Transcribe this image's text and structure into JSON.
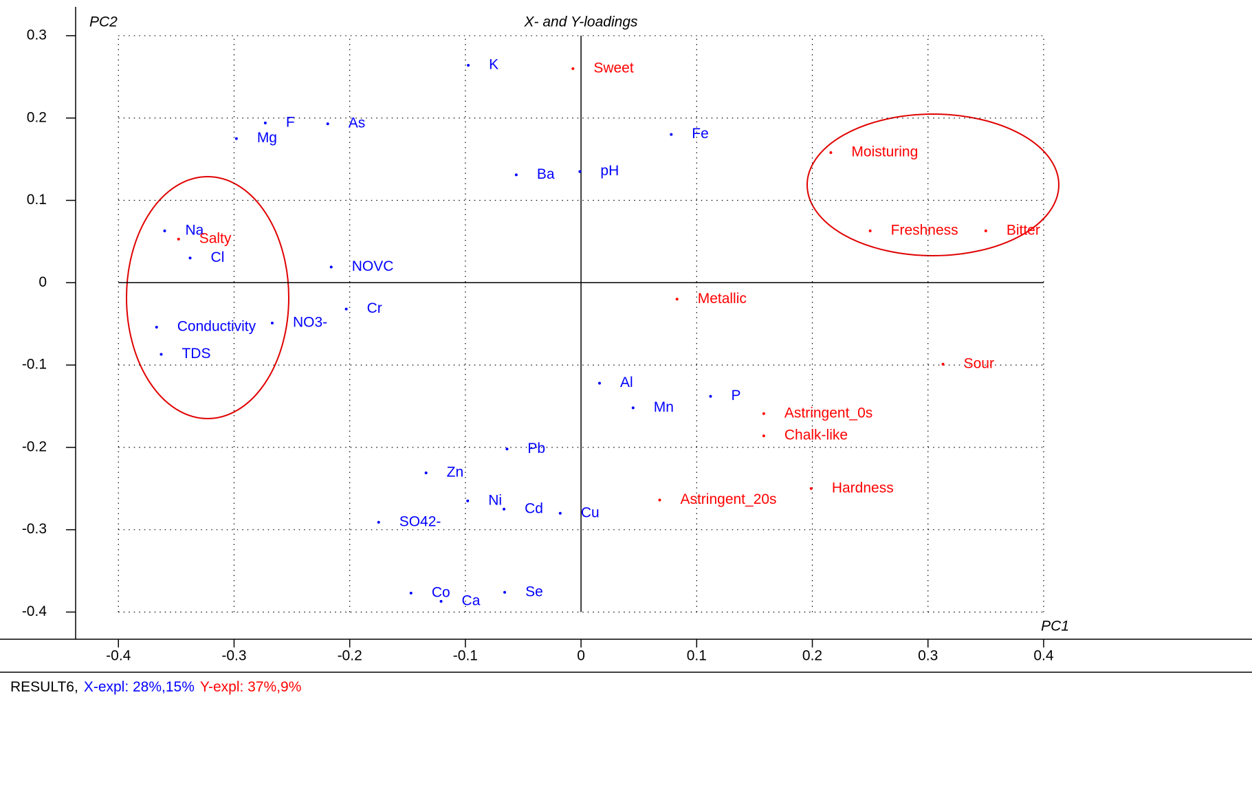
{
  "chart_data": {
    "type": "scatter",
    "title": "X- and Y-loadings",
    "x_label": "PC1",
    "y_label": "PC2",
    "xlim": [
      -0.437,
      0.425
    ],
    "ylim": [
      -0.433,
      0.335
    ],
    "xticks": [
      -0.4,
      -0.3,
      -0.2,
      -0.1,
      0,
      0.1,
      0.2,
      0.3,
      0.4
    ],
    "yticks": [
      -0.4,
      -0.3,
      -0.2,
      -0.1,
      0,
      0.1,
      0.2,
      0.3
    ],
    "grid": true,
    "series": [
      {
        "color": "#0000ff",
        "labels": [
          "K",
          "F",
          "As",
          "Mg",
          "Fe",
          "Ba",
          "pH",
          "Na",
          "Cl",
          "NOVC",
          "Cr",
          "NO3-",
          "Conductivity",
          "TDS",
          "Al",
          "Mn",
          "P",
          "Pb",
          "Zn",
          "Ni",
          "Cd",
          "Cu",
          "SO42-",
          "Co",
          "Ca",
          "Se"
        ],
        "x": [
          -0.0975,
          -0.273,
          -0.219,
          -0.298,
          0.078,
          -0.056,
          -0.001,
          -0.36,
          -0.338,
          -0.216,
          -0.203,
          -0.267,
          -0.367,
          -0.363,
          0.016,
          0.045,
          0.112,
          -0.064,
          -0.134,
          -0.098,
          -0.0666,
          -0.018,
          -0.175,
          -0.147,
          -0.121,
          -0.066
        ],
        "values": [
          0.264,
          0.194,
          0.193,
          0.175,
          0.18,
          0.131,
          0.135,
          0.063,
          0.03,
          0.019,
          -0.032,
          -0.049,
          -0.054,
          -0.087,
          -0.122,
          -0.152,
          -0.138,
          -0.202,
          -0.231,
          -0.265,
          -0.275,
          -0.28,
          -0.291,
          -0.377,
          -0.387,
          -0.376
        ]
      },
      {
        "color": "#ff0000",
        "labels": [
          "Sweet",
          "Moisturing",
          "Freshness",
          "Bitter",
          "Salty",
          "Metallic",
          "Sour",
          "Astringent_0s",
          "Chalk-like",
          "Hardness",
          "Astringent_20s"
        ],
        "x": [
          -0.007,
          0.216,
          0.25,
          0.35,
          -0.348,
          0.083,
          0.313,
          0.158,
          0.158,
          0.199,
          0.068
        ],
        "values": [
          0.26,
          0.158,
          0.063,
          0.063,
          0.053,
          -0.02,
          -0.099,
          -0.159,
          -0.186,
          -0.25,
          -0.264
        ]
      }
    ],
    "footer": [
      {
        "text": "RESULT6,",
        "color": "#000000"
      },
      {
        "text": "X-expl: 28%,15%",
        "color": "#0000ff"
      },
      {
        "text": "Y-expl: 37%,9%",
        "color": "#ff0000"
      }
    ]
  }
}
